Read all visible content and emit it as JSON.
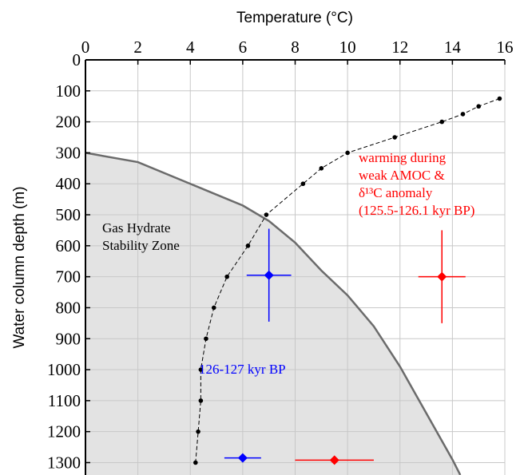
{
  "chart_data": {
    "type": "line",
    "xlabel": "Temperature (°C)",
    "ylabel": "Water column depth (m)",
    "xlim": [
      0,
      16
    ],
    "ylim": [
      0,
      1340
    ],
    "xticks": [
      0,
      2,
      4,
      6,
      8,
      10,
      12,
      14,
      16
    ],
    "yticks": [
      0,
      100,
      200,
      300,
      400,
      500,
      600,
      700,
      800,
      900,
      1000,
      1100,
      1200,
      1300
    ],
    "y_inverted": true,
    "grid": true,
    "series": [
      {
        "style": "area",
        "color": "#e3e3e3",
        "line_color": "#6b6b6b",
        "x": [
          0,
          2,
          4,
          6,
          7,
          8,
          9,
          10,
          11,
          12,
          13,
          14,
          14.3
        ],
        "values": [
          300,
          330,
          400,
          470,
          520,
          590,
          680,
          760,
          860,
          990,
          1140,
          1290,
          1340
        ]
      },
      {
        "style": "dashed-points",
        "color": "#000000",
        "x": [
          15.8,
          15.0,
          14.4,
          13.6,
          11.8,
          10.0,
          9.0,
          8.3,
          6.9,
          6.2,
          5.4,
          4.9,
          4.6,
          4.4,
          4.4,
          4.3,
          4.2
        ],
        "values": [
          125,
          150,
          175,
          200,
          250,
          300,
          350,
          400,
          500,
          600,
          700,
          800,
          900,
          1000,
          1100,
          1200,
          1300
        ]
      },
      {
        "style": "errorbar",
        "color": "#0000ff",
        "x": [
          7.0,
          6.0
        ],
        "values": [
          695,
          1285
        ],
        "xerr": [
          0.85,
          0.7
        ],
        "yerr": [
          150,
          null
        ]
      },
      {
        "style": "errorbar",
        "color": "#ff0000",
        "x": [
          13.6,
          9.5
        ],
        "values": [
          700,
          1292
        ],
        "xerr": [
          0.9,
          1.5
        ],
        "yerr": [
          150,
          null
        ]
      }
    ],
    "annotations": [
      {
        "lines": [
          "Gas Hydrate",
          "Stability Zone"
        ],
        "color": "#000000"
      },
      {
        "lines": [
          "warming during",
          "weak AMOC &",
          "δ¹³C anomaly",
          "(125.5-126.1 kyr BP)"
        ],
        "color": "#ff0000"
      },
      {
        "lines": [
          "126-127 kyr BP"
        ],
        "color": "#0000ff"
      }
    ]
  }
}
